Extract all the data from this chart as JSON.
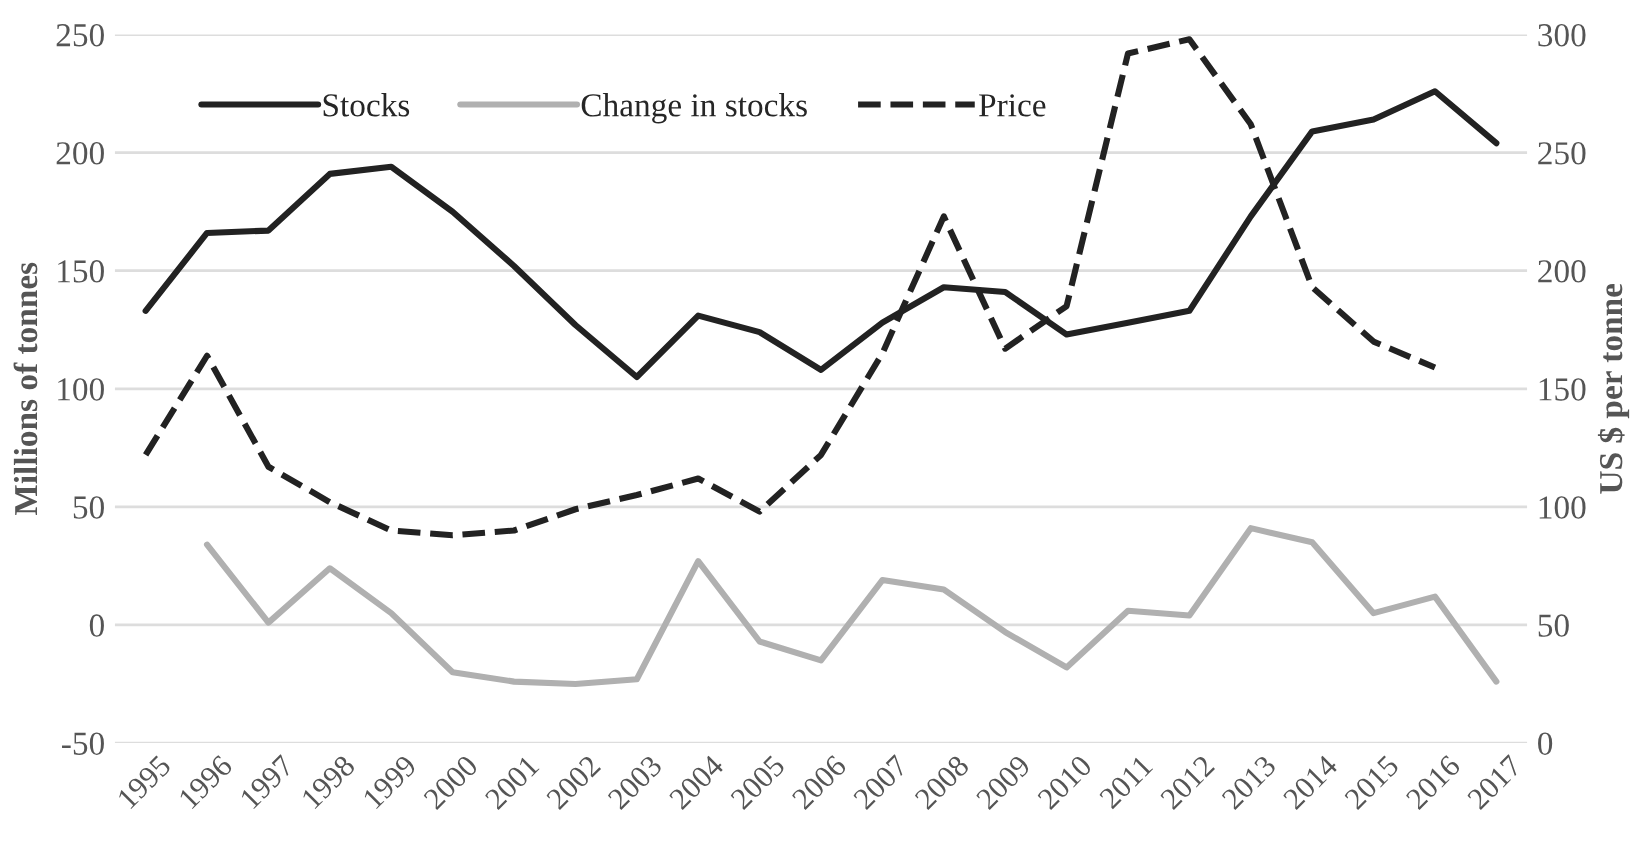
{
  "chart_data": {
    "type": "line",
    "ylabel": "Millions of tonnes",
    "y2label": "US $ per tonne",
    "categories": [
      "1995",
      "1996",
      "1997",
      "1998",
      "1999",
      "2000",
      "2001",
      "2002",
      "2003",
      "2004",
      "2005",
      "2006",
      "2007",
      "2008",
      "2009",
      "2010",
      "2011",
      "2012",
      "2013",
      "2014",
      "2015",
      "2016",
      "2017"
    ],
    "series": [
      {
        "name": "Stocks",
        "color": "#222222",
        "line_style": "solid",
        "values": [
          133,
          166,
          167,
          191,
          194,
          175,
          152,
          127,
          105,
          131,
          124,
          108,
          128,
          143,
          141,
          123,
          128,
          133,
          173,
          209,
          214,
          226,
          204
        ]
      },
      {
        "name": "Change in stocks",
        "color": "#b0b0b0",
        "line_style": "solid",
        "values": [
          null,
          34,
          1,
          24,
          5,
          -20,
          -24,
          -25,
          -23,
          27,
          -7,
          -15,
          19,
          15,
          -3,
          -18,
          6,
          4,
          41,
          35,
          5,
          12,
          -24
        ]
      },
      {
        "name": "Price",
        "color": "#222222",
        "line_style": "dashed",
        "axis": "y2",
        "values": [
          122,
          164,
          117,
          102,
          90,
          88,
          90,
          99,
          105,
          112,
          98,
          122,
          165,
          223,
          167,
          185,
          292,
          298,
          262,
          193,
          170,
          159,
          null
        ]
      }
    ],
    "ylim": [
      -50,
      250
    ],
    "yticks": [
      -50,
      0,
      50,
      100,
      150,
      200,
      250
    ],
    "y2lim": [
      0,
      300
    ],
    "y2ticks": [
      0,
      50,
      100,
      150,
      200,
      250,
      300
    ],
    "grid": "y",
    "legend": "top left"
  }
}
